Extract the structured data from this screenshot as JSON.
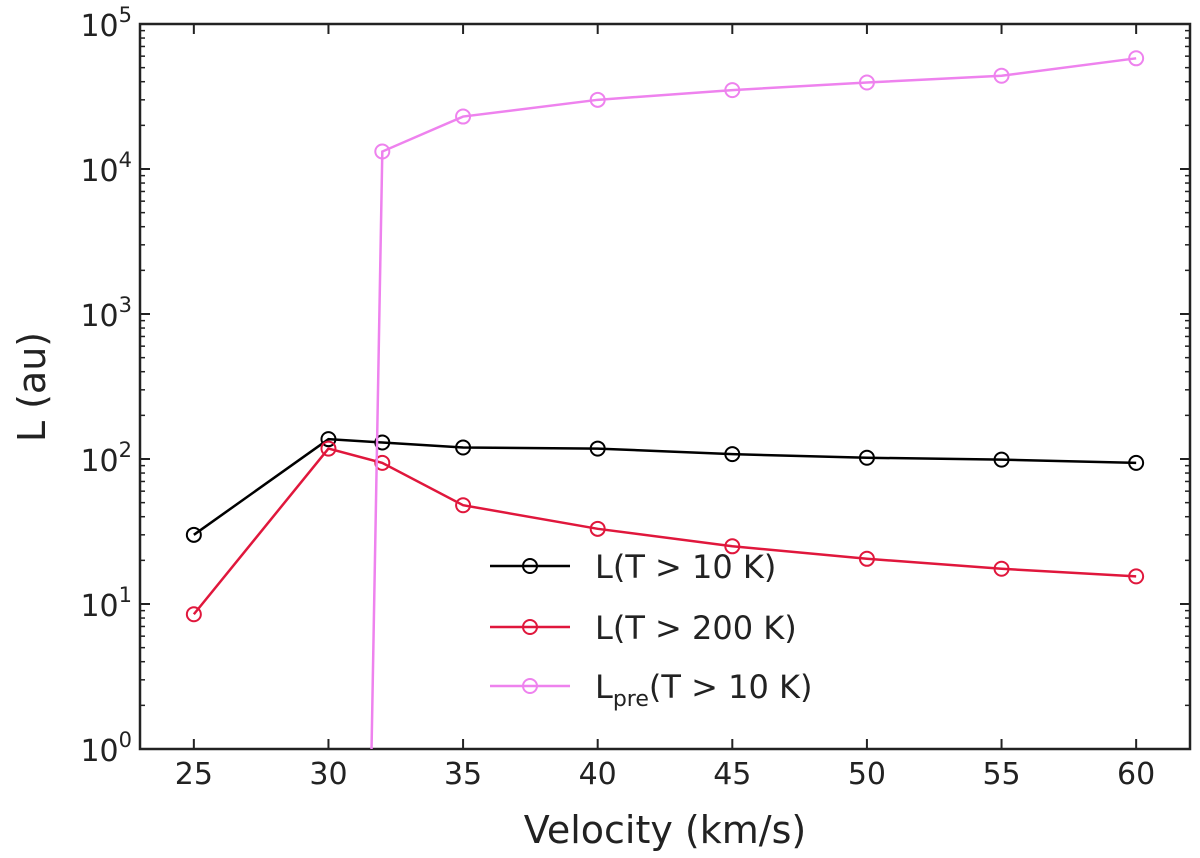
{
  "chart_data": {
    "type": "line",
    "xlabel": "Velocity (km/s)",
    "ylabel": "L (au)",
    "xlim": [
      23,
      62
    ],
    "ylim": [
      1,
      100000
    ],
    "yscale": "log",
    "xticks": [
      25,
      30,
      35,
      40,
      45,
      50,
      55,
      60
    ],
    "yticks": [
      {
        "value": 1,
        "base": "10",
        "exp": "0"
      },
      {
        "value": 10,
        "base": "10",
        "exp": "1"
      },
      {
        "value": 100,
        "base": "10",
        "exp": "2"
      },
      {
        "value": 1000,
        "base": "10",
        "exp": "3"
      },
      {
        "value": 10000,
        "base": "10",
        "exp": "4"
      },
      {
        "value": 100000,
        "base": "10",
        "exp": "5"
      }
    ],
    "grid": false,
    "legend_position": "lower-center",
    "series": [
      {
        "name": "L(T > 10 K)",
        "color": "#000000",
        "x": [
          25,
          30,
          32,
          35,
          40,
          45,
          50,
          55,
          60
        ],
        "y": [
          30,
          137,
          130,
          120,
          118,
          108,
          102,
          99,
          94
        ]
      },
      {
        "name": "L(T > 200 K)",
        "color": "#e0173c",
        "x": [
          25,
          30,
          32,
          35,
          40,
          45,
          50,
          55,
          60
        ],
        "y": [
          8.5,
          118,
          94,
          48,
          33,
          25,
          20.5,
          17.5,
          15.5
        ]
      },
      {
        "name": "Lpre(T > 10 K)",
        "legend_main": "L",
        "legend_sub": "pre",
        "legend_rest": "(T > 10 K)",
        "color": "#ee82ee",
        "x": [
          31.6,
          32,
          35,
          40,
          45,
          50,
          55,
          60
        ],
        "y": [
          1,
          13200,
          23000,
          30000,
          35000,
          39500,
          44000,
          58000
        ],
        "marker_from_index": 1
      }
    ]
  }
}
